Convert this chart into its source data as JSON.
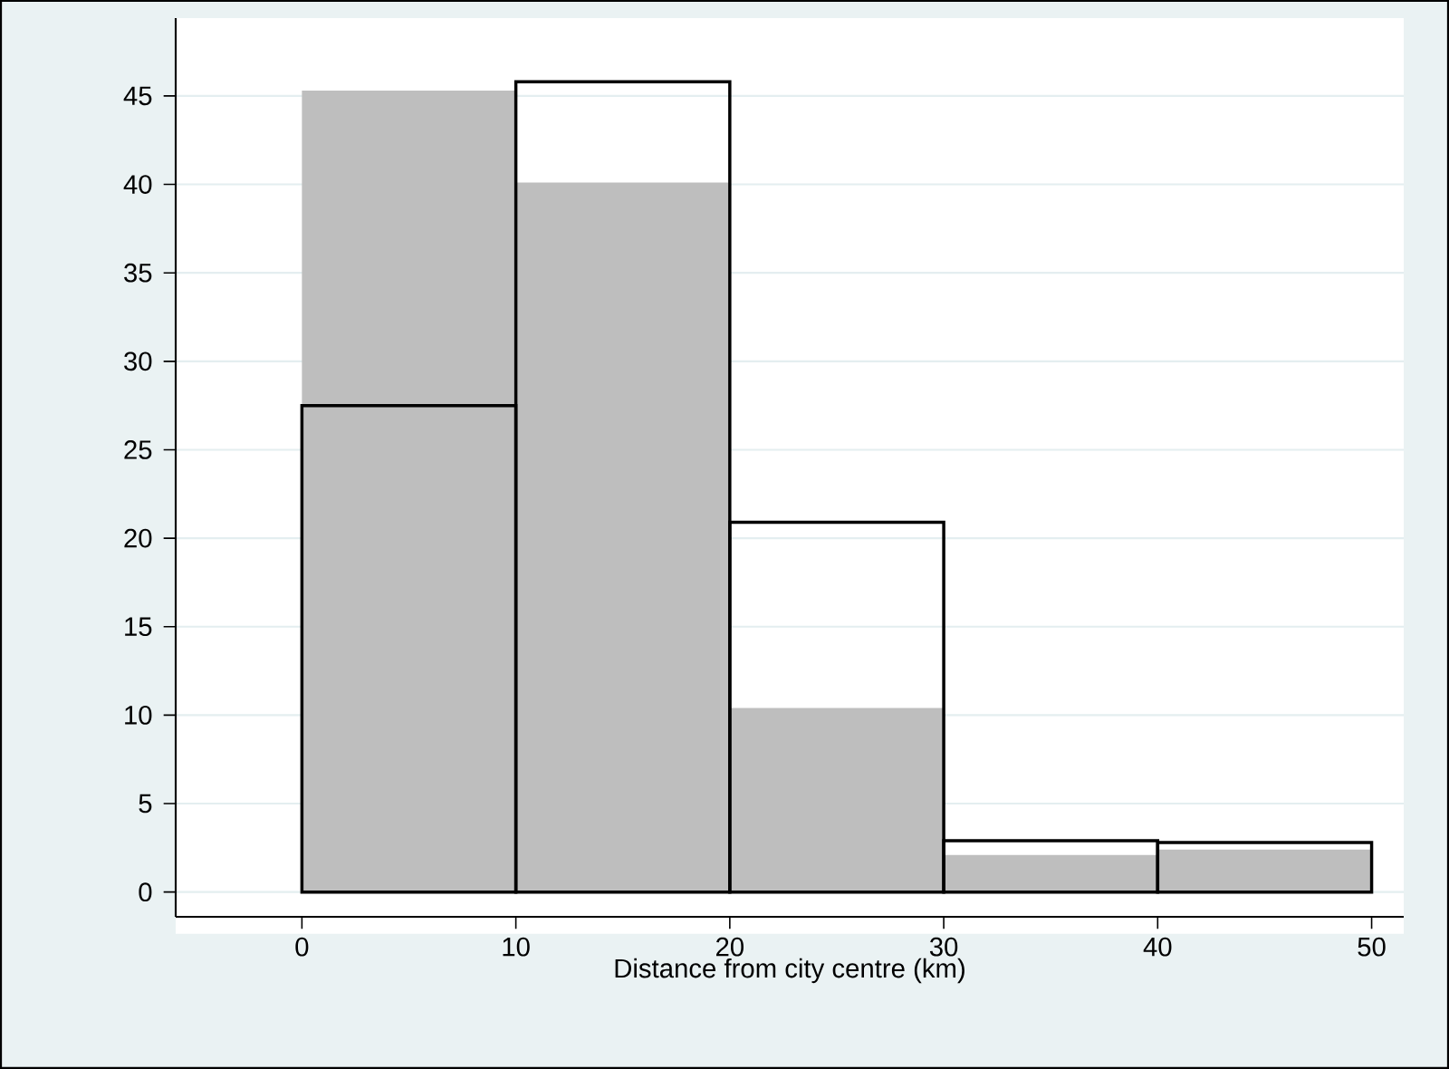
{
  "chart_data": {
    "type": "histogram",
    "xlabel": "Distance from city centre (km)",
    "bins": [
      0,
      10,
      20,
      30,
      40,
      50
    ],
    "series": [
      {
        "color": "#bebebe",
        "values": [
          45.3,
          40.1,
          10.4,
          2.1,
          2.4
        ]
      },
      {
        "color": "#000000",
        "values": [
          27.5,
          45.8,
          20.9,
          2.9,
          2.8
        ]
      }
    ],
    "xlim": [
      -5.9,
      51.5
    ],
    "ylim": [
      -1.4,
      49.4
    ],
    "xticks": [
      0,
      10,
      20,
      30,
      40,
      50
    ],
    "yticks": [
      0,
      5,
      10,
      15,
      20,
      25,
      30,
      35,
      40,
      45
    ],
    "grid": "y"
  }
}
